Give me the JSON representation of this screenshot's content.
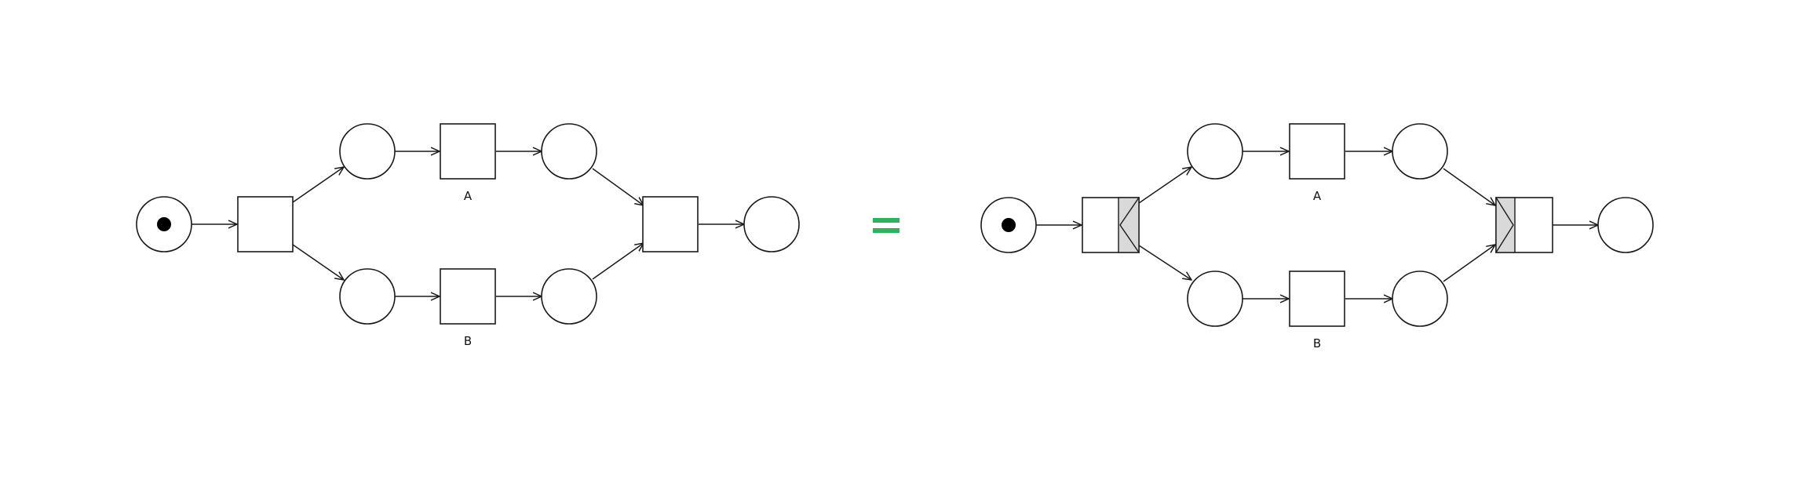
{
  "diagram": {
    "left_net": {
      "transitions": [
        {
          "id": "t-split",
          "label": ""
        },
        {
          "id": "t-a",
          "label": "A"
        },
        {
          "id": "t-b",
          "label": "B"
        },
        {
          "id": "t-join",
          "label": ""
        }
      ],
      "token_in_start_place": true
    },
    "equals": {
      "symbol": "=",
      "color": "#2db35d"
    },
    "right_net": {
      "transitions": [
        {
          "id": "t-split",
          "label": "",
          "gateway": "and-split"
        },
        {
          "id": "t-a",
          "label": "A"
        },
        {
          "id": "t-b",
          "label": "B"
        },
        {
          "id": "t-join",
          "label": "",
          "gateway": "and-join"
        }
      ],
      "token_in_start_place": true
    },
    "colors": {
      "stroke": "#1a1a1a",
      "gateway_fill": "#d9d9d9",
      "equals": "#2db35d"
    }
  }
}
